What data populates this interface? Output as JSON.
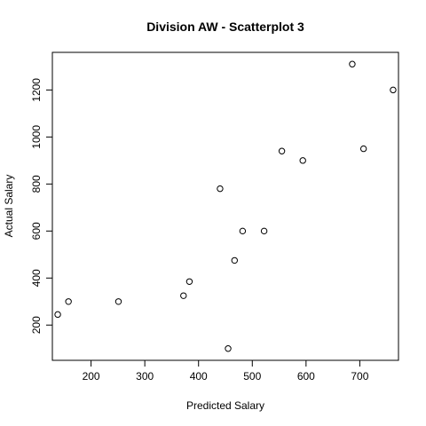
{
  "chart_data": {
    "type": "scatter",
    "title": "Division AW - Scatterplot 3",
    "xlabel": "Predicted Salary",
    "ylabel": "Actual Salary",
    "xlim": [
      128,
      772
    ],
    "ylim": [
      50,
      1360
    ],
    "xticks": [
      200,
      300,
      400,
      500,
      600,
      700
    ],
    "yticks": [
      200,
      400,
      600,
      800,
      1000,
      1200
    ],
    "grid": false,
    "points": [
      {
        "x": 138,
        "y": 245
      },
      {
        "x": 158,
        "y": 300
      },
      {
        "x": 251,
        "y": 300
      },
      {
        "x": 372,
        "y": 325
      },
      {
        "x": 383,
        "y": 385
      },
      {
        "x": 440,
        "y": 780
      },
      {
        "x": 455,
        "y": 100
      },
      {
        "x": 467,
        "y": 475
      },
      {
        "x": 482,
        "y": 600
      },
      {
        "x": 522,
        "y": 600
      },
      {
        "x": 555,
        "y": 940
      },
      {
        "x": 594,
        "y": 900
      },
      {
        "x": 686,
        "y": 1310
      },
      {
        "x": 707,
        "y": 950
      },
      {
        "x": 762,
        "y": 1200
      }
    ]
  }
}
